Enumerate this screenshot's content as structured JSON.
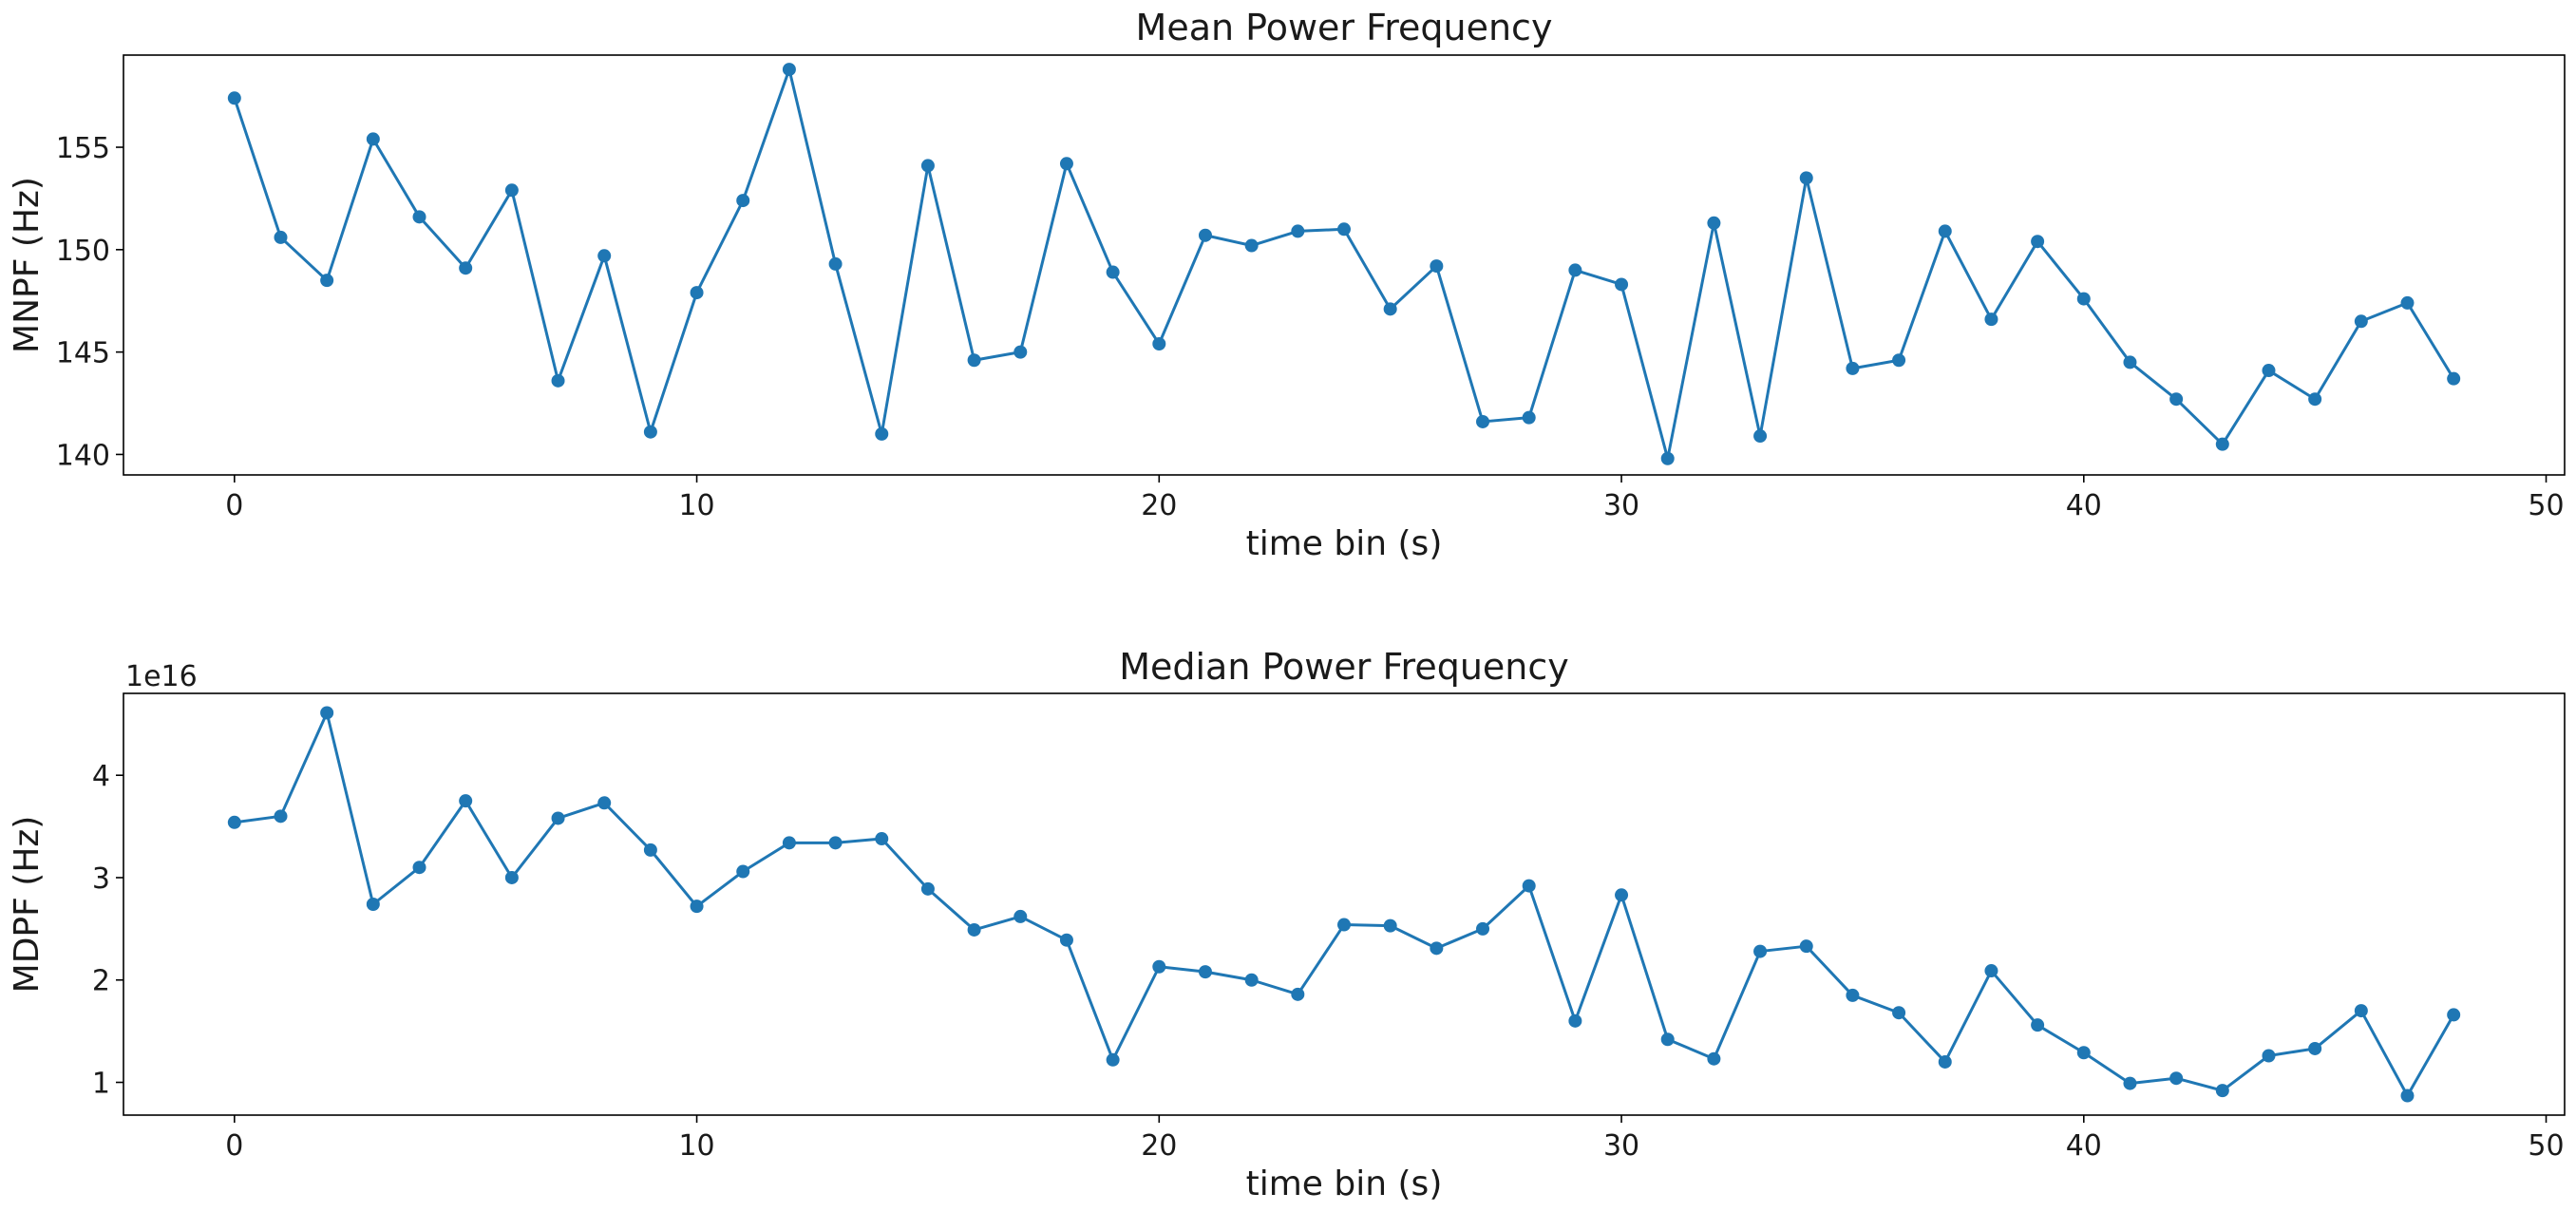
{
  "chart_data": [
    {
      "type": "line",
      "title": "Mean Power Frequency",
      "xlabel": "time bin (s)",
      "ylabel": "MNPF (Hz)",
      "xlim": [
        -2.4,
        50.4
      ],
      "ylim": [
        139,
        159.5
      ],
      "xticks": [
        0,
        10,
        20,
        30,
        40,
        50
      ],
      "yticks": [
        140,
        145,
        150,
        155
      ],
      "offset_label": "",
      "color": "#1f77b4",
      "x": [
        0,
        1,
        2,
        3,
        4,
        5,
        6,
        7,
        8,
        9,
        10,
        11,
        12,
        13,
        14,
        15,
        16,
        17,
        18,
        19,
        20,
        21,
        22,
        23,
        24,
        25,
        26,
        27,
        28,
        29,
        30,
        31,
        32,
        33,
        34,
        35,
        36,
        37,
        38,
        39,
        40,
        41,
        42,
        43,
        44,
        45,
        46,
        47,
        48
      ],
      "y": [
        157.4,
        150.6,
        148.5,
        155.4,
        151.6,
        149.1,
        152.9,
        143.6,
        149.7,
        141.1,
        147.9,
        152.4,
        158.8,
        149.3,
        141.0,
        154.1,
        144.6,
        145.0,
        154.2,
        148.9,
        145.4,
        150.7,
        150.2,
        150.9,
        151.0,
        147.1,
        149.2,
        141.6,
        141.8,
        149.0,
        148.3,
        139.8,
        151.3,
        140.9,
        153.5,
        144.2,
        144.6,
        150.9,
        146.6,
        150.4,
        147.6,
        144.5,
        142.7,
        140.5,
        144.1,
        142.7,
        146.5,
        147.4,
        143.7
      ]
    },
    {
      "type": "line",
      "title": "Median Power Frequency",
      "xlabel": "time bin (s)",
      "ylabel": "MDPF (Hz)",
      "xlim": [
        -2.4,
        50.4
      ],
      "ylim": [
        0.68,
        4.8
      ],
      "xticks": [
        0,
        10,
        20,
        30,
        40,
        50
      ],
      "yticks": [
        1,
        2,
        3,
        4
      ],
      "offset_label": "1e16",
      "color": "#1f77b4",
      "x": [
        0,
        1,
        2,
        3,
        4,
        5,
        6,
        7,
        8,
        9,
        10,
        11,
        12,
        13,
        14,
        15,
        16,
        17,
        18,
        19,
        20,
        21,
        22,
        23,
        24,
        25,
        26,
        27,
        28,
        29,
        30,
        31,
        32,
        33,
        34,
        35,
        36,
        37,
        38,
        39,
        40,
        41,
        42,
        43,
        44,
        45,
        46,
        47,
        48
      ],
      "y": [
        3.54,
        3.6,
        4.61,
        2.74,
        3.1,
        3.75,
        3.0,
        3.58,
        3.73,
        3.27,
        2.72,
        3.06,
        3.34,
        3.34,
        3.38,
        2.89,
        2.49,
        2.62,
        2.39,
        1.22,
        2.13,
        2.08,
        2.0,
        1.86,
        2.54,
        2.53,
        2.31,
        2.5,
        2.92,
        1.6,
        2.83,
        1.42,
        1.23,
        2.28,
        2.33,
        1.85,
        1.68,
        1.2,
        2.09,
        1.56,
        1.29,
        0.99,
        1.04,
        0.92,
        1.26,
        1.33,
        1.7,
        0.87,
        1.66
      ]
    }
  ]
}
